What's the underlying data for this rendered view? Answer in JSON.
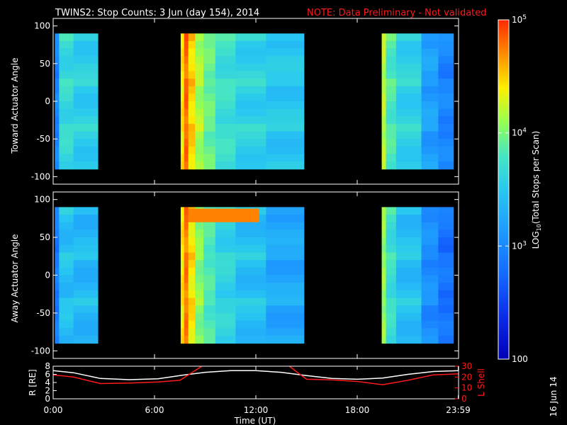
{
  "header": {
    "title": "TWINS2: Stop Counts:  3 Jun (day 154), 2014",
    "note": "NOTE: Data Preliminary - Not validated"
  },
  "colors": {
    "note": "#ff1a1a",
    "background": "#000000",
    "frame": "#ffffff",
    "r_series": "#ffffff",
    "lshell_series": "#ff1a1a"
  },
  "side_date": "16 Jun 14",
  "chart_data": [
    {
      "type": "heatmap",
      "ylabel": "Toward Actuator Angle",
      "ylim": [
        -110,
        110
      ],
      "yticks": [
        100,
        50,
        0,
        -50,
        -100
      ],
      "x_range_hours": [
        0,
        24
      ],
      "data_range_deg": [
        -90,
        90
      ],
      "coverage_hours": [
        [
          0.1,
          0.35
        ],
        [
          0.35,
          2.65
        ],
        [
          7.55,
          14.85
        ],
        [
          19.45,
          23.7
        ]
      ],
      "gap_hours": [
        [
          2.65,
          7.55
        ],
        [
          14.85,
          19.45
        ]
      ],
      "colorscale": [
        "#0000b4",
        "#0a2ae6",
        "#1469ff",
        "#1e9bff",
        "#28c8f0",
        "#46e6c3",
        "#96ff50",
        "#ffee00",
        "#ff8c00",
        "#ff2800"
      ],
      "columns": [
        {
          "start": 0.1,
          "end": 0.35,
          "level": 0.28
        },
        {
          "start": 0.35,
          "end": 1.2,
          "level": 0.5
        },
        {
          "start": 1.2,
          "end": 2.65,
          "level": 0.46
        },
        {
          "start": 7.55,
          "end": 7.75,
          "level": 0.78
        },
        {
          "start": 7.75,
          "end": 8.0,
          "level": 0.92
        },
        {
          "start": 8.0,
          "end": 8.4,
          "level": 0.8
        },
        {
          "start": 8.4,
          "end": 8.9,
          "level": 0.68
        },
        {
          "start": 8.9,
          "end": 9.6,
          "level": 0.6
        },
        {
          "start": 9.6,
          "end": 10.8,
          "level": 0.52
        },
        {
          "start": 10.8,
          "end": 12.6,
          "level": 0.47
        },
        {
          "start": 12.6,
          "end": 14.85,
          "level": 0.44
        },
        {
          "start": 19.45,
          "end": 19.7,
          "level": 0.7
        },
        {
          "start": 19.7,
          "end": 20.3,
          "level": 0.56
        },
        {
          "start": 20.3,
          "end": 21.8,
          "level": 0.47
        },
        {
          "start": 21.8,
          "end": 22.8,
          "level": 0.34
        },
        {
          "start": 22.8,
          "end": 23.7,
          "level": 0.28
        }
      ]
    },
    {
      "type": "heatmap",
      "ylabel": "Away Actuator Angle",
      "ylim": [
        -110,
        110
      ],
      "yticks": [
        100,
        50,
        0,
        -50,
        -100
      ],
      "x_range_hours": [
        0,
        24
      ],
      "data_range_deg": [
        -90,
        90
      ],
      "coverage_hours": [
        [
          0.1,
          0.35
        ],
        [
          0.35,
          2.65
        ],
        [
          7.55,
          14.85
        ],
        [
          19.45,
          23.7
        ]
      ],
      "gap_hours": [
        [
          2.65,
          7.55
        ],
        [
          14.85,
          19.45
        ]
      ],
      "colorscale": [
        "#0000b4",
        "#0a2ae6",
        "#1469ff",
        "#1e9bff",
        "#28c8f0",
        "#46e6c3",
        "#96ff50",
        "#ffee00",
        "#ff8c00",
        "#ff2800"
      ],
      "columns": [
        {
          "start": 0.1,
          "end": 0.35,
          "level": 0.26
        },
        {
          "start": 0.35,
          "end": 1.2,
          "level": 0.42
        },
        {
          "start": 1.2,
          "end": 2.65,
          "level": 0.4
        },
        {
          "start": 7.55,
          "end": 7.75,
          "level": 0.78
        },
        {
          "start": 7.75,
          "end": 8.0,
          "level": 0.9
        },
        {
          "start": 8.0,
          "end": 8.4,
          "level": 0.78
        },
        {
          "start": 8.4,
          "end": 8.9,
          "level": 0.64
        },
        {
          "start": 8.9,
          "end": 9.6,
          "level": 0.56
        },
        {
          "start": 9.6,
          "end": 10.8,
          "level": 0.48
        },
        {
          "start": 10.8,
          "end": 12.6,
          "level": 0.42
        },
        {
          "start": 12.6,
          "end": 14.85,
          "level": 0.36
        },
        {
          "start": 19.45,
          "end": 19.7,
          "level": 0.66
        },
        {
          "start": 19.7,
          "end": 20.3,
          "level": 0.52
        },
        {
          "start": 20.3,
          "end": 21.8,
          "level": 0.42
        },
        {
          "start": 21.8,
          "end": 22.8,
          "level": 0.3
        },
        {
          "start": 22.8,
          "end": 23.7,
          "level": 0.24
        }
      ],
      "hot_band": {
        "x_hours": [
          8.0,
          12.2
        ],
        "y_deg": [
          70,
          88
        ],
        "level": 0.9
      }
    },
    {
      "type": "line",
      "xlabel": "Time (UT)",
      "xticks": [
        "0:00",
        "6:00",
        "12:00",
        "18:00",
        "23:59"
      ],
      "xtick_hours": [
        0,
        6,
        12,
        18,
        23.98
      ],
      "xlim": [
        0,
        24
      ],
      "left_axis": {
        "label": "R [RE]",
        "ylim": [
          0,
          8
        ],
        "yticks": [
          0,
          2,
          4,
          6,
          8
        ]
      },
      "right_axis": {
        "label": "L Shell",
        "ylim": [
          0,
          30
        ],
        "yticks": [
          0,
          10,
          20,
          30
        ]
      },
      "series": [
        {
          "axis": "left",
          "color": "#ffffff",
          "x": [
            0,
            1.2,
            2.8,
            4.5,
            6.2,
            7.5,
            9,
            10.5,
            12,
            13.5,
            15,
            16.5,
            18,
            19.5,
            21,
            22.5,
            24
          ],
          "values": [
            6.9,
            6.4,
            5.0,
            4.7,
            4.9,
            5.7,
            6.5,
            6.9,
            6.9,
            6.5,
            5.7,
            5.0,
            4.8,
            5.1,
            6.0,
            6.7,
            6.9
          ]
        },
        {
          "axis": "right",
          "color": "#ff1a1a",
          "x": [
            0,
            1.2,
            2.8,
            4.5,
            6.2,
            7.5,
            8.3,
            8.9,
            13.9,
            14.4,
            15,
            16.5,
            18,
            19.5,
            21,
            22.5,
            24
          ],
          "values": [
            22,
            20,
            14,
            14.5,
            15.5,
            17,
            25,
            31,
            31,
            25,
            18,
            17.5,
            16,
            13,
            17,
            22,
            23
          ]
        }
      ]
    },
    {
      "type": "colorbar",
      "label": "LOG10(Total Stops per Scan)",
      "label_base": "LOG",
      "label_sub": "10",
      "label_rest": "(Total Stops per Scan)",
      "scale": "log",
      "range": [
        100,
        100000
      ],
      "ticks": [
        {
          "value": 100000,
          "base": "10",
          "exp": "5"
        },
        {
          "value": 10000,
          "base": "10",
          "exp": "4"
        },
        {
          "value": 1000,
          "base": "10",
          "exp": "3"
        },
        {
          "value": 100,
          "text": "100"
        }
      ]
    }
  ]
}
